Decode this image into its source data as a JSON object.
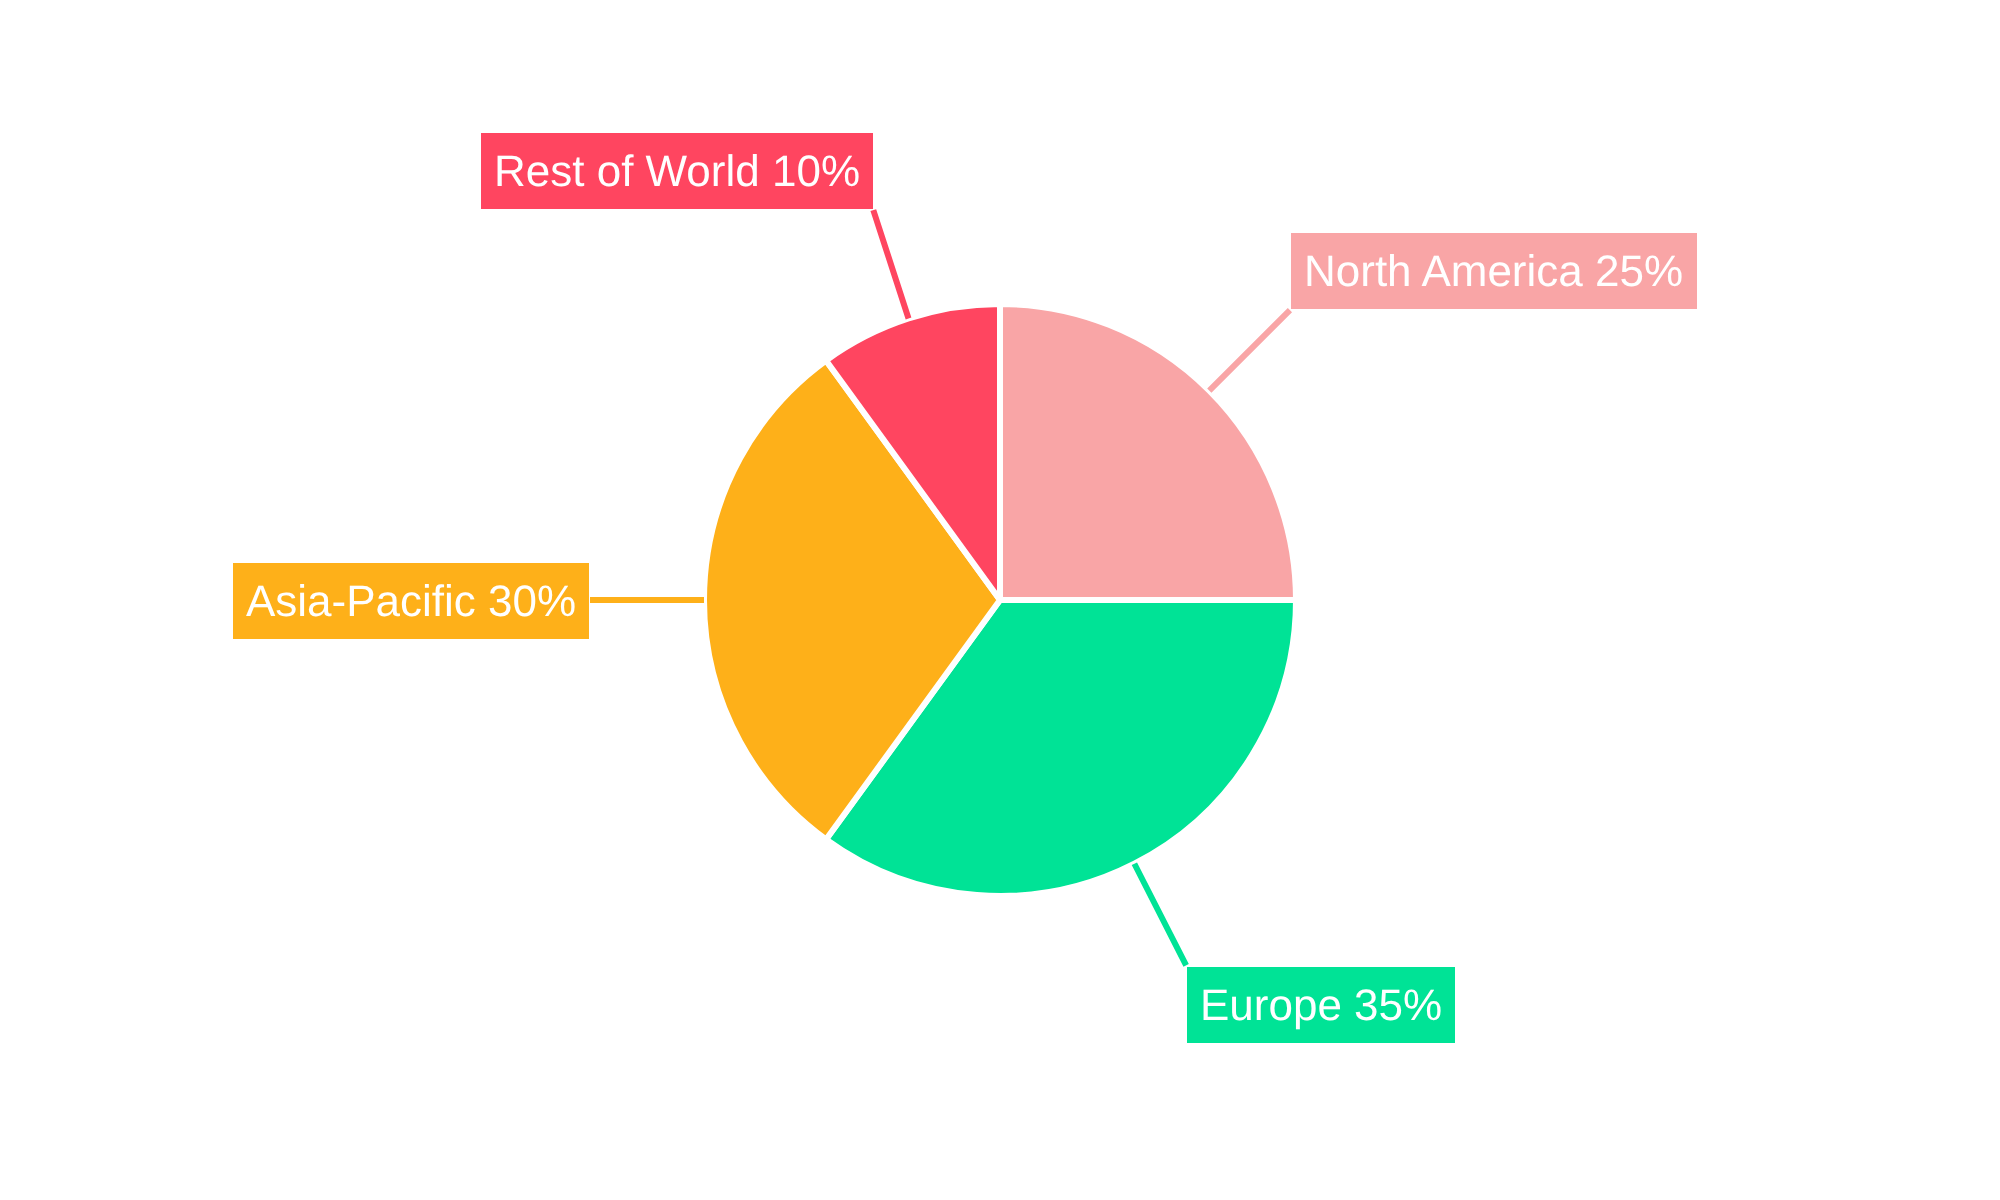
{
  "chart_data": {
    "type": "pie",
    "categories": [
      "North America",
      "Europe",
      "Asia-Pacific",
      "Rest of World"
    ],
    "values": [
      25,
      35,
      30,
      10
    ],
    "value_labels": [
      "25%",
      "35%",
      "30%",
      "10%"
    ],
    "colors": [
      "#f9a5a6",
      "#00e396",
      "#feb019",
      "#ff4560"
    ],
    "legend": false
  }
}
